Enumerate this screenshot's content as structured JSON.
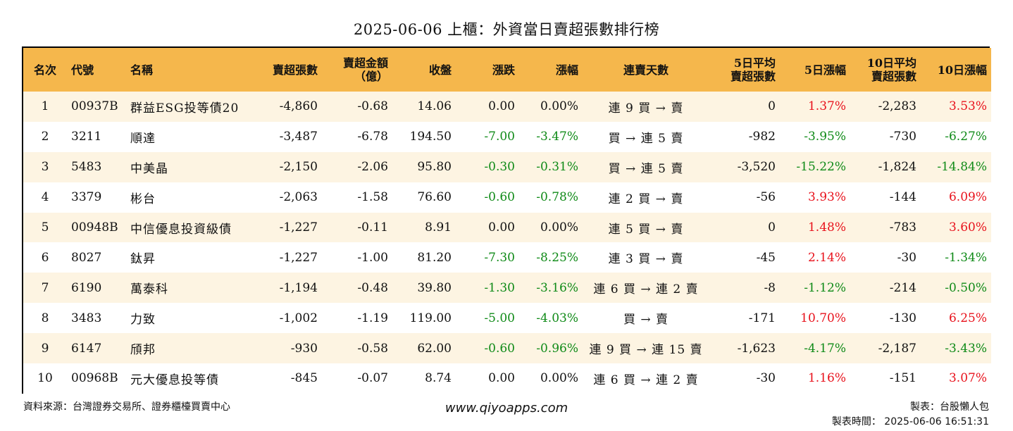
{
  "title": "2025-06-06 上櫃：外資當日賣超張數排行榜",
  "colors": {
    "header_bg": "#f5b74c",
    "row_alt_bg": "#fdf4e2",
    "up": "#e8121c",
    "down": "#0f8a17",
    "neutral": "#111111"
  },
  "columns": [
    {
      "key": "rank",
      "label": "名次",
      "align": "c"
    },
    {
      "key": "code",
      "label": "代號",
      "align": "l"
    },
    {
      "key": "name",
      "label": "名稱",
      "align": "l"
    },
    {
      "key": "sell_shares",
      "label": "賣超張數",
      "align": "r"
    },
    {
      "key": "sell_amount",
      "label": "賣超金額\n（億）",
      "align": "r"
    },
    {
      "key": "close",
      "label": "收盤",
      "align": "r"
    },
    {
      "key": "change",
      "label": "漲跌",
      "align": "r"
    },
    {
      "key": "change_pct",
      "label": "漲幅",
      "align": "r"
    },
    {
      "key": "streak",
      "label": "連賣天數",
      "align": "c"
    },
    {
      "key": "avg5",
      "label": "5日平均\n賣超張數",
      "align": "r"
    },
    {
      "key": "chg5",
      "label": "5日漲幅",
      "align": "r"
    },
    {
      "key": "avg10",
      "label": "10日平均\n賣超張數",
      "align": "r"
    },
    {
      "key": "chg10",
      "label": "10日漲幅",
      "align": "r"
    }
  ],
  "rows": [
    {
      "rank": "1",
      "code": "00937B",
      "name": "群益ESG投等債20",
      "sell_shares": "-4,860",
      "sell_amount": "-0.68",
      "close": "14.06",
      "change": "0.00",
      "change_pct": "0.00%",
      "streak": "連 9 買 → 賣",
      "avg5": "0",
      "chg5": "1.37%",
      "avg10": "-2,283",
      "chg10": "3.53%"
    },
    {
      "rank": "2",
      "code": "3211",
      "name": "順達",
      "sell_shares": "-3,487",
      "sell_amount": "-6.78",
      "close": "194.50",
      "change": "-7.00",
      "change_pct": "-3.47%",
      "streak": "買 → 連 5 賣",
      "avg5": "-982",
      "chg5": "-3.95%",
      "avg10": "-730",
      "chg10": "-6.27%"
    },
    {
      "rank": "3",
      "code": "5483",
      "name": "中美晶",
      "sell_shares": "-2,150",
      "sell_amount": "-2.06",
      "close": "95.80",
      "change": "-0.30",
      "change_pct": "-0.31%",
      "streak": "買 → 連 5 賣",
      "avg5": "-3,520",
      "chg5": "-15.22%",
      "avg10": "-1,824",
      "chg10": "-14.84%"
    },
    {
      "rank": "4",
      "code": "3379",
      "name": "彬台",
      "sell_shares": "-2,063",
      "sell_amount": "-1.58",
      "close": "76.60",
      "change": "-0.60",
      "change_pct": "-0.78%",
      "streak": "連 2 買 → 賣",
      "avg5": "-56",
      "chg5": "3.93%",
      "avg10": "-144",
      "chg10": "6.09%"
    },
    {
      "rank": "5",
      "code": "00948B",
      "name": "中信優息投資級債",
      "sell_shares": "-1,227",
      "sell_amount": "-0.11",
      "close": "8.91",
      "change": "0.00",
      "change_pct": "0.00%",
      "streak": "連 5 買 → 賣",
      "avg5": "0",
      "chg5": "1.48%",
      "avg10": "-783",
      "chg10": "3.60%"
    },
    {
      "rank": "6",
      "code": "8027",
      "name": "鈦昇",
      "sell_shares": "-1,227",
      "sell_amount": "-1.00",
      "close": "81.20",
      "change": "-7.30",
      "change_pct": "-8.25%",
      "streak": "連 3 買 → 賣",
      "avg5": "-45",
      "chg5": "2.14%",
      "avg10": "-30",
      "chg10": "-1.34%"
    },
    {
      "rank": "7",
      "code": "6190",
      "name": "萬泰科",
      "sell_shares": "-1,194",
      "sell_amount": "-0.48",
      "close": "39.80",
      "change": "-1.30",
      "change_pct": "-3.16%",
      "streak": "連 6 買 → 連 2 賣",
      "avg5": "-8",
      "chg5": "-1.12%",
      "avg10": "-214",
      "chg10": "-0.50%"
    },
    {
      "rank": "8",
      "code": "3483",
      "name": "力致",
      "sell_shares": "-1,002",
      "sell_amount": "-1.19",
      "close": "119.00",
      "change": "-5.00",
      "change_pct": "-4.03%",
      "streak": "買 → 賣",
      "avg5": "-171",
      "chg5": "10.70%",
      "avg10": "-130",
      "chg10": "6.25%"
    },
    {
      "rank": "9",
      "code": "6147",
      "name": "頎邦",
      "sell_shares": "-930",
      "sell_amount": "-0.58",
      "close": "62.00",
      "change": "-0.60",
      "change_pct": "-0.96%",
      "streak": "連 9 買 → 連 15 賣",
      "avg5": "-1,623",
      "chg5": "-4.17%",
      "avg10": "-2,187",
      "chg10": "-3.43%"
    },
    {
      "rank": "10",
      "code": "00968B",
      "name": "元大優息投等債",
      "sell_shares": "-845",
      "sell_amount": "-0.07",
      "close": "8.74",
      "change": "0.00",
      "change_pct": "0.00%",
      "streak": "連 6 買 → 連 2 賣",
      "avg5": "-30",
      "chg5": "1.16%",
      "avg10": "-151",
      "chg10": "3.07%"
    }
  ],
  "colored_keys": [
    "change",
    "change_pct",
    "chg5",
    "chg10"
  ],
  "footer": {
    "source": "資料來源：台灣證券交易所、證券櫃檯買賣中心",
    "site": "www.qiyoapps.com",
    "maker": "製表：台股懶人包",
    "time": "製表時間： 2025-06-06 16:51:31"
  }
}
